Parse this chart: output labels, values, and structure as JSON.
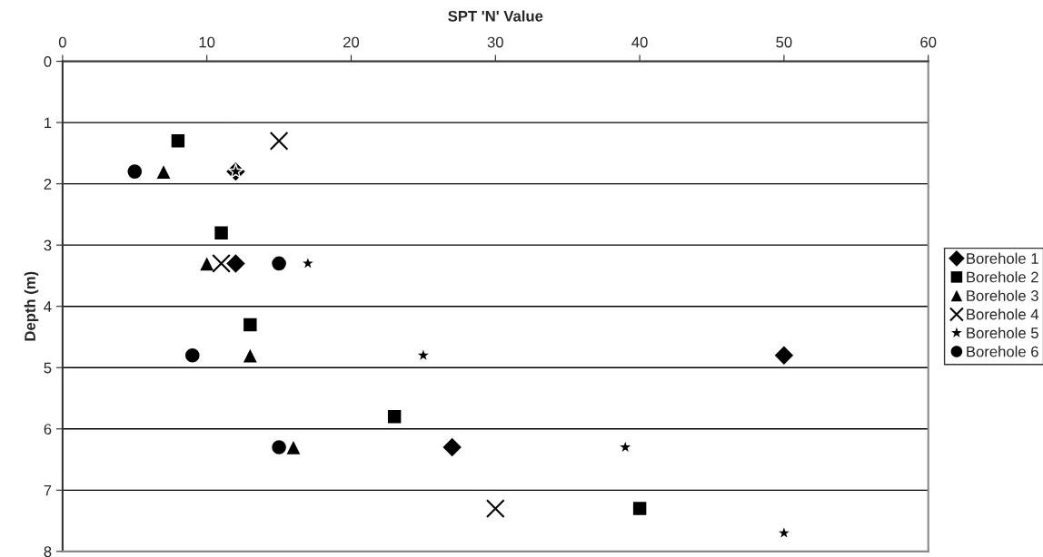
{
  "chart_data": {
    "type": "scatter",
    "xlabel": "SPT 'N' Value",
    "ylabel": "Depth (m)",
    "xlim": [
      0,
      60
    ],
    "xticks": [
      0,
      10,
      20,
      30,
      40,
      50,
      60
    ],
    "ylim": [
      8,
      0
    ],
    "yticks": [
      0,
      1,
      2,
      3,
      4,
      5,
      6,
      7,
      8
    ],
    "grid": "y",
    "legend": "right",
    "series": [
      {
        "name": "Borehole 1",
        "color": "#000000",
        "marker": "diamond",
        "x": [
          12,
          12,
          50,
          27
        ],
        "values": [
          1.8,
          3.3,
          4.8,
          6.3
        ]
      },
      {
        "name": "Borehole 2",
        "color": "#000000",
        "marker": "square",
        "x": [
          8,
          11,
          13,
          23,
          40
        ],
        "values": [
          1.3,
          2.8,
          4.3,
          5.8,
          7.3
        ]
      },
      {
        "name": "Borehole 3",
        "color": "#000000",
        "marker": "triangle",
        "x": [
          7,
          10,
          13,
          16
        ],
        "values": [
          1.8,
          3.3,
          4.8,
          6.3
        ]
      },
      {
        "name": "Borehole 4",
        "color": "#000000",
        "marker": "cross",
        "x": [
          15,
          11,
          30
        ],
        "values": [
          1.3,
          3.3,
          7.3
        ]
      },
      {
        "name": "Borehole 5",
        "color": "#000000",
        "marker": "star",
        "x": [
          12,
          17,
          25,
          39,
          50
        ],
        "values": [
          1.8,
          3.3,
          4.8,
          6.3,
          7.7
        ]
      },
      {
        "name": "Borehole 6",
        "color": "#000000",
        "marker": "circle",
        "x": [
          5,
          15,
          9,
          15
        ],
        "values": [
          1.8,
          3.3,
          4.8,
          6.3
        ]
      }
    ]
  }
}
